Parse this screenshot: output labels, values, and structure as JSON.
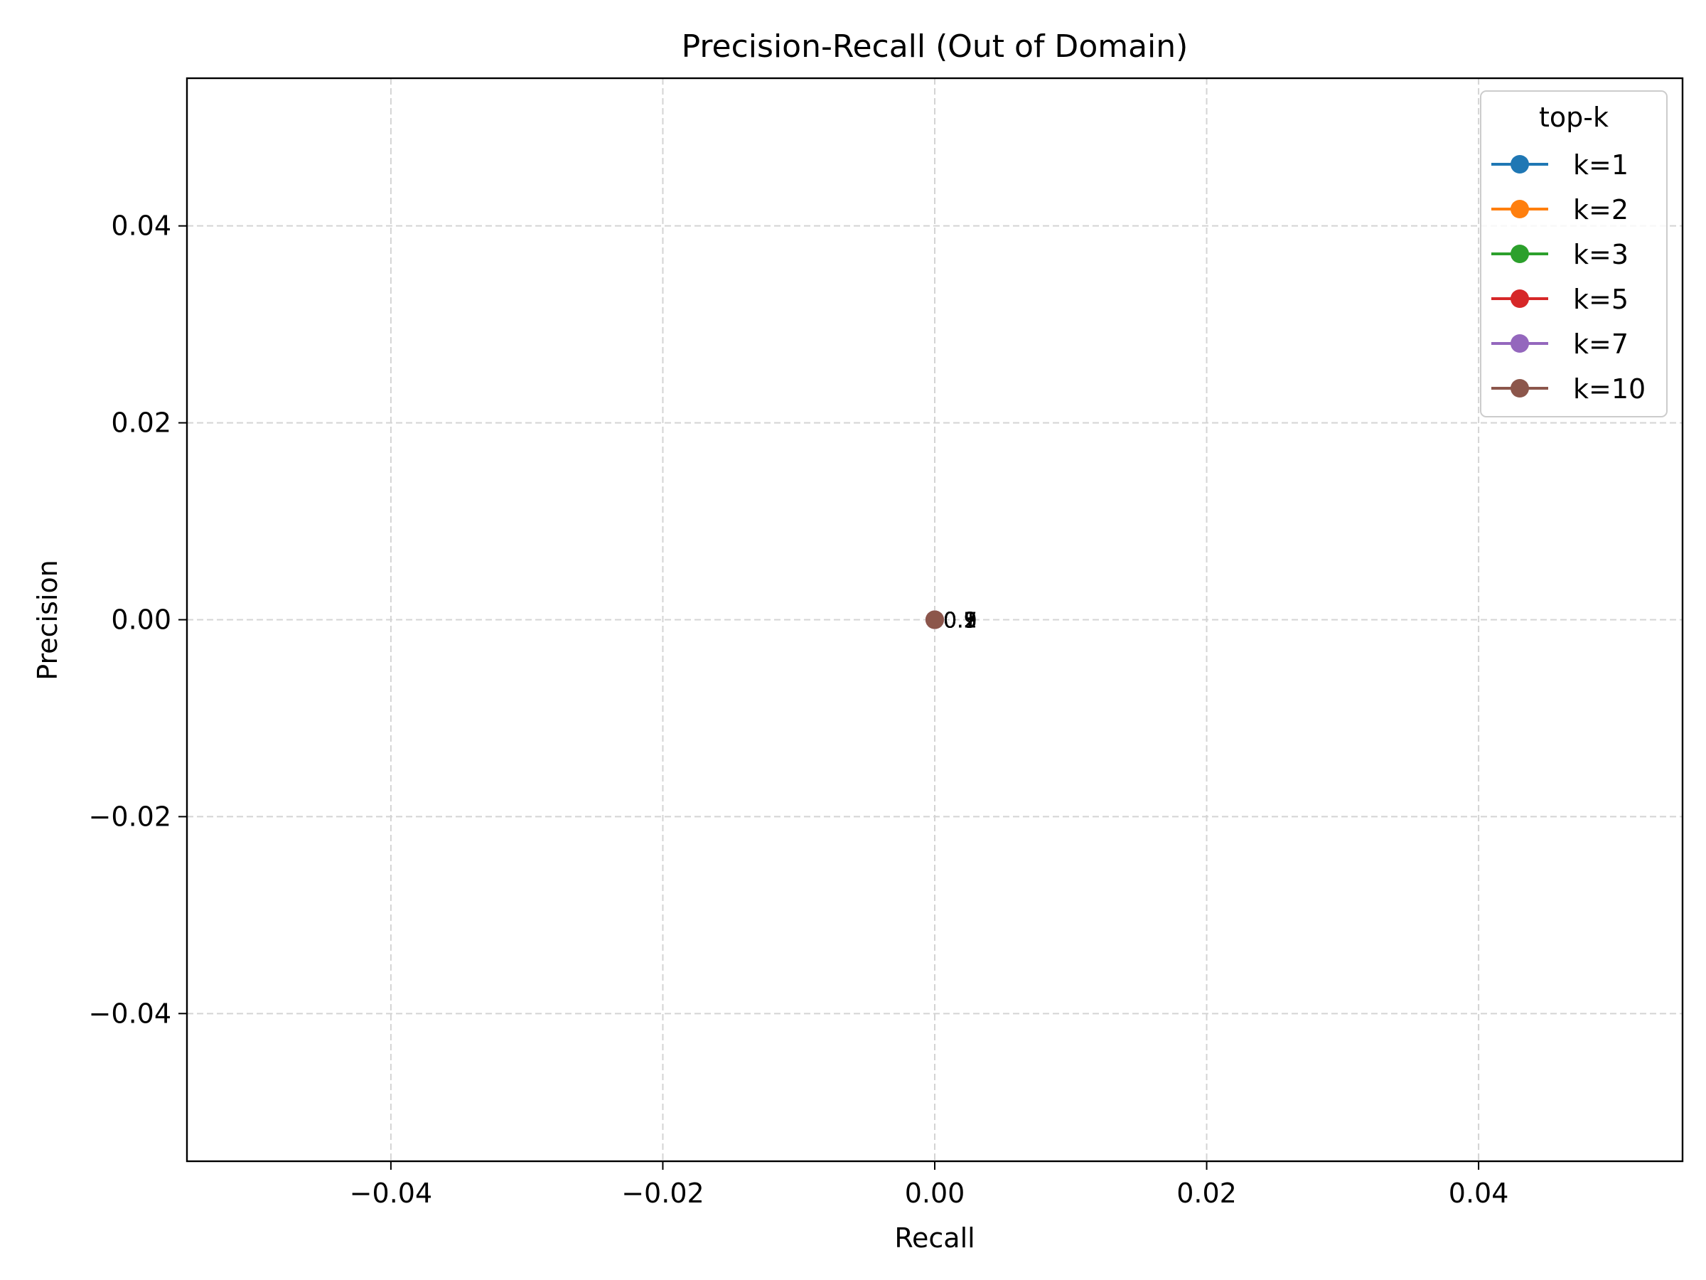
{
  "chart_data": {
    "type": "line",
    "title": "Precision-Recall (Out of Domain)",
    "xlabel": "Recall",
    "ylabel": "Precision",
    "xlim": [
      -0.055,
      0.055
    ],
    "ylim": [
      -0.055,
      0.055
    ],
    "xticks": [
      {
        "value": -0.04,
        "label": "−0.04"
      },
      {
        "value": -0.02,
        "label": "−0.02"
      },
      {
        "value": 0.0,
        "label": "0.00"
      },
      {
        "value": 0.02,
        "label": "0.02"
      },
      {
        "value": 0.04,
        "label": "0.04"
      }
    ],
    "yticks": [
      {
        "value": 0.04,
        "label": "0.04"
      },
      {
        "value": 0.02,
        "label": "0.02"
      },
      {
        "value": 0.0,
        "label": "0.00"
      },
      {
        "value": -0.02,
        "label": "−0.02"
      },
      {
        "value": -0.04,
        "label": "−0.04"
      }
    ],
    "grid": true,
    "legend": {
      "title": "top-k",
      "placement": "top-right"
    },
    "series": [
      {
        "name": "k=1",
        "color": "#1f77b4",
        "points": [
          {
            "x": 0.0,
            "y": 0.0,
            "label": "0.1"
          }
        ]
      },
      {
        "name": "k=2",
        "color": "#ff7f0e",
        "points": [
          {
            "x": 0.0,
            "y": 0.0,
            "label": "0.2"
          }
        ]
      },
      {
        "name": "k=3",
        "color": "#2ca02c",
        "points": [
          {
            "x": 0.0,
            "y": 0.0,
            "label": "0.3"
          }
        ]
      },
      {
        "name": "k=5",
        "color": "#d62728",
        "points": [
          {
            "x": 0.0,
            "y": 0.0,
            "label": "0.5"
          }
        ]
      },
      {
        "name": "k=7",
        "color": "#9467bd",
        "points": [
          {
            "x": 0.0,
            "y": 0.0,
            "label": "0.7"
          }
        ]
      },
      {
        "name": "k=10",
        "color": "#8c564b",
        "points": [
          {
            "x": 0.0,
            "y": 0.0,
            "label": "0.9"
          }
        ]
      }
    ]
  }
}
